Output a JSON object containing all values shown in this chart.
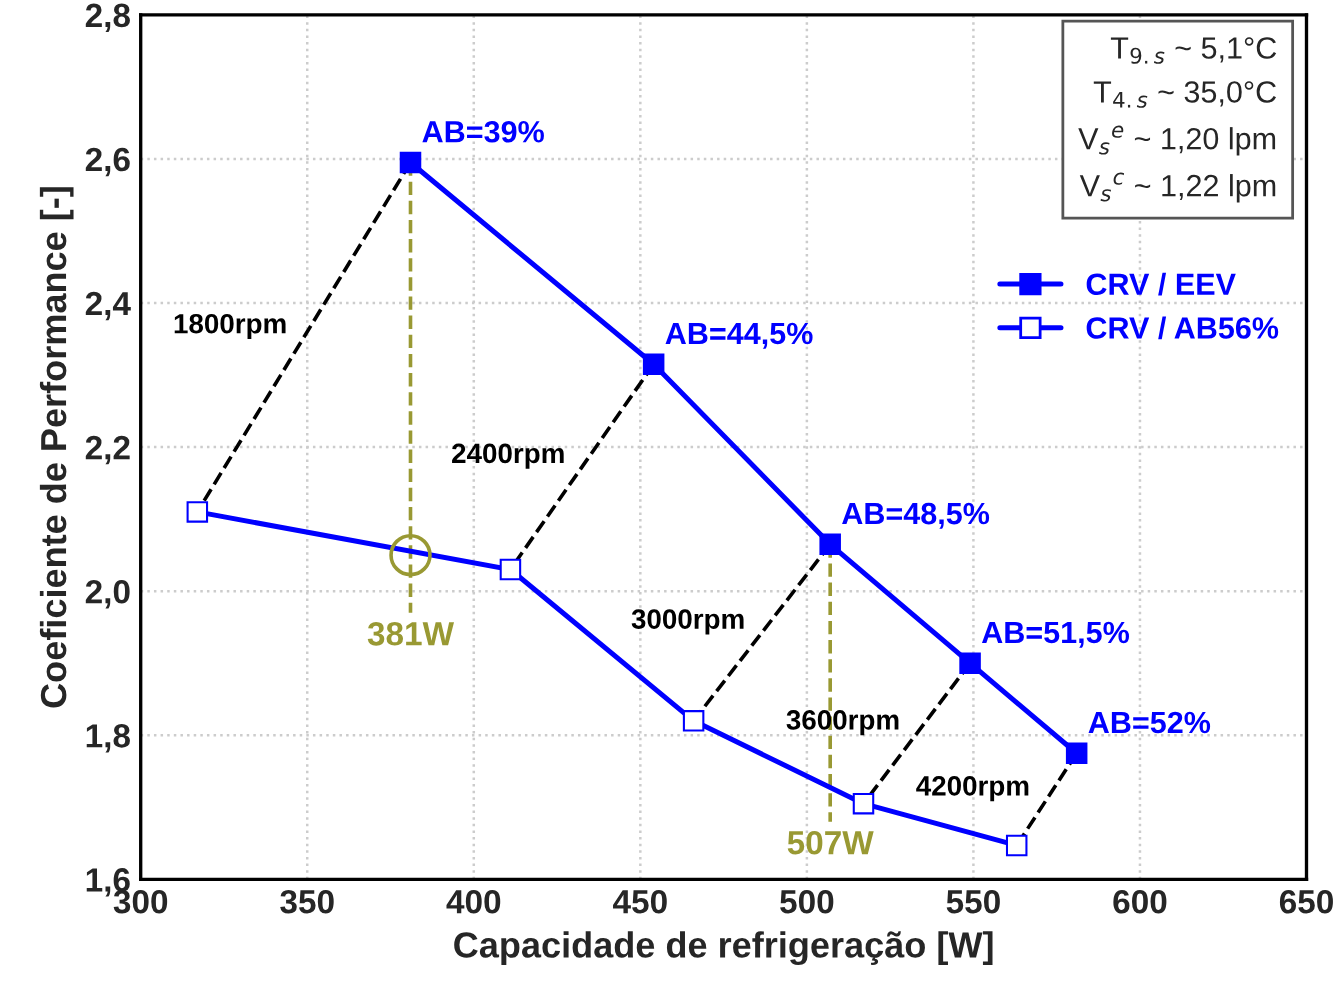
{
  "chart_data": {
    "type": "line",
    "xlabel": "Capacidade de refrigeração [W]",
    "ylabel": "Coeficiente de Performance [-]",
    "xlim": [
      300,
      650
    ],
    "xticks": [
      300,
      350,
      400,
      450,
      500,
      550,
      600,
      650
    ],
    "ylim": [
      1.6,
      2.8
    ],
    "yticks": [
      {
        "value": 1.6,
        "label": "1,6"
      },
      {
        "value": 1.8,
        "label": "1,8"
      },
      {
        "value": 2.0,
        "label": "2,0"
      },
      {
        "value": 2.2,
        "label": "2,2"
      },
      {
        "value": 2.4,
        "label": "2,4"
      },
      {
        "value": 2.6,
        "label": "2,6"
      },
      {
        "value": 2.8,
        "label": "2,8"
      }
    ],
    "grid": true,
    "legend": "right",
    "series": [
      {
        "name": "CRV / EEV",
        "color": "#0000ff",
        "marker": "square",
        "x": [
          381,
          454,
          507,
          549,
          581
        ],
        "values": [
          2.595,
          2.315,
          2.065,
          1.9,
          1.775
        ]
      },
      {
        "name": "CRV / AB56%",
        "color": "#0000ff",
        "marker": "square",
        "x": [
          317,
          411,
          466,
          517,
          563
        ],
        "values": [
          2.11,
          2.03,
          1.82,
          1.705,
          1.647
        ]
      },
      {
        "type": "line",
        "color": "#000000",
        "line_style": "dashed",
        "marker": "none",
        "x": [
          381,
          317
        ],
        "values": [
          2.595,
          2.11
        ]
      },
      {
        "type": "line",
        "color": "#000000",
        "line_style": "dashed",
        "marker": "none",
        "x": [
          454,
          411
        ],
        "values": [
          2.315,
          2.03
        ]
      },
      {
        "type": "line",
        "color": "#000000",
        "line_style": "dashed",
        "marker": "none",
        "x": [
          507,
          466
        ],
        "values": [
          2.065,
          1.82
        ]
      },
      {
        "type": "line",
        "color": "#000000",
        "line_style": "dashed",
        "marker": "none",
        "x": [
          549,
          517
        ],
        "values": [
          1.9,
          1.705
        ]
      },
      {
        "type": "line",
        "color": "#000000",
        "line_style": "dashed",
        "marker": "none",
        "x": [
          581,
          563
        ],
        "values": [
          1.775,
          1.647
        ]
      },
      {
        "type": "line",
        "color": "#999933",
        "line_style": "dashed",
        "marker": "none",
        "x": [
          381,
          381
        ],
        "values": [
          2.595,
          1.97
        ]
      },
      {
        "type": "line",
        "color": "#999933",
        "line_style": "dashed",
        "marker": "none",
        "x": [
          507,
          507
        ],
        "values": [
          2.065,
          1.68
        ]
      },
      {
        "type": "scatter",
        "color": "#999933",
        "marker": "circle",
        "x": [
          381
        ],
        "values": [
          2.05
        ]
      }
    ],
    "annotations": [
      {
        "text": "AB=39%",
        "x": 381,
        "y": 2.595
      },
      {
        "text": "AB=44,5%",
        "x": 454,
        "y": 2.315
      },
      {
        "text": "AB=48,5%",
        "x": 507,
        "y": 2.065
      },
      {
        "text": "AB=51,5%",
        "x": 549,
        "y": 1.9
      },
      {
        "text": "AB=52%",
        "x": 581,
        "y": 1.775
      },
      {
        "text": "381W",
        "x": 381,
        "y": 1.97
      },
      {
        "text": "507W",
        "x": 507,
        "y": 1.68
      },
      "1800rpm",
      "2400rpm",
      "3000rpm",
      "3600rpm",
      "4200rpm",
      "T$_{9.s}$ ~ 5,1°C\nT$_{4.s}$ ~ 35,0°C\nV$_{s}$$^{e}$ ~ 1,20 lpm\nV$_{s}$$^{c}$ ~ 1,22 lpm"
    ]
  }
}
